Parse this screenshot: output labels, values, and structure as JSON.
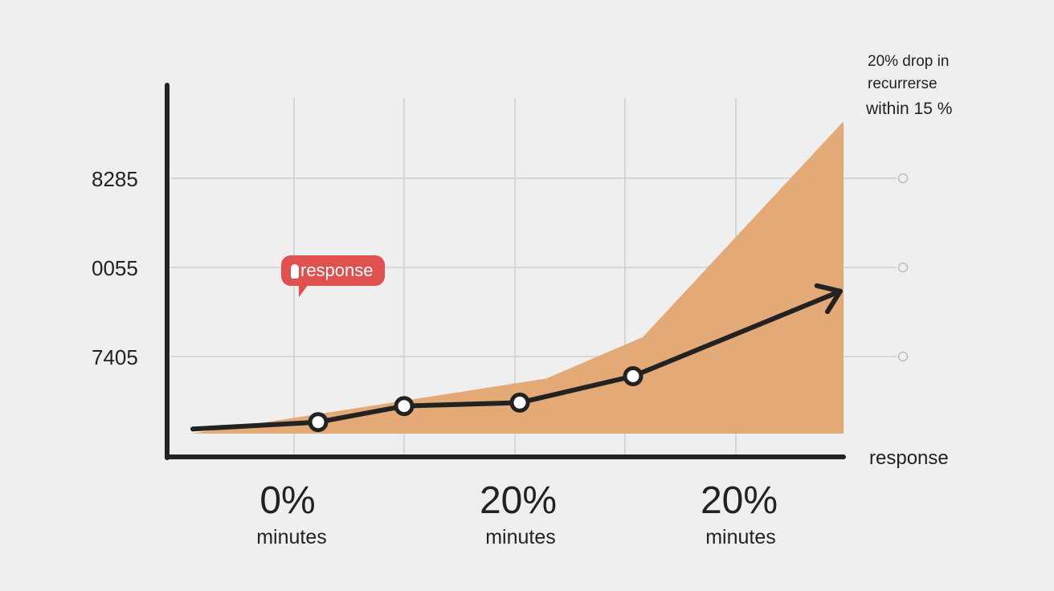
{
  "chart_data": {
    "type": "line",
    "title": "",
    "xlabel": "response",
    "ylabel": "",
    "y_ticks": [
      "8285",
      "0055",
      "7405"
    ],
    "x_ticks": [
      {
        "value": "0%",
        "unit": "minutes"
      },
      {
        "value": "20%",
        "unit": "minutes"
      },
      {
        "value": "20%",
        "unit": "minutes"
      }
    ],
    "series": [
      {
        "kind": "line",
        "values": [
          0.2,
          0.5,
          1.2,
          1.35,
          2.5,
          6.2
        ],
        "markers": [
          false,
          true,
          true,
          true,
          true,
          false
        ]
      },
      {
        "kind": "area",
        "values": [
          0.0,
          0.9,
          2.4,
          4.2,
          13.6
        ]
      }
    ],
    "annotation_lines": [
      "20% drop in",
      "recurrerse",
      "within 15 %"
    ],
    "callout": "response",
    "grid": true,
    "colors": {
      "line": "#222222",
      "area": "#e3aa78",
      "callout": "#e0504f",
      "grid": "#cfcfcf"
    }
  }
}
